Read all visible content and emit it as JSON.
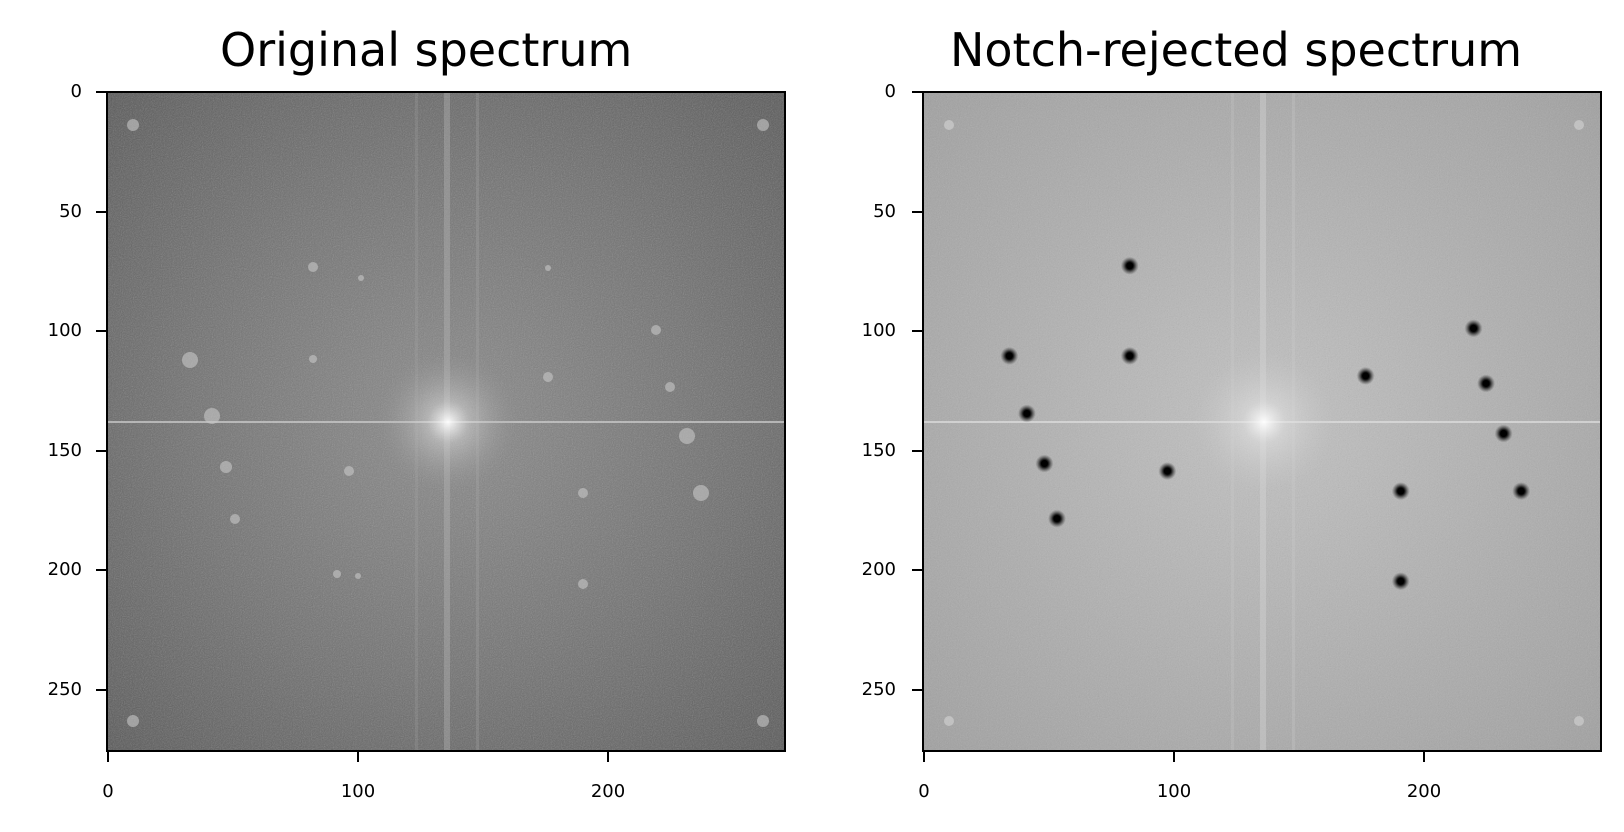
{
  "panels": [
    {
      "title": "Original spectrum",
      "y_ticks": [
        "0",
        "50",
        "100",
        "150",
        "200",
        "250"
      ],
      "x_ticks": [
        "0",
        "100",
        "200"
      ]
    },
    {
      "title": "Notch-rejected spectrum",
      "y_ticks": [
        "0",
        "50",
        "100",
        "150",
        "200",
        "250"
      ],
      "x_ticks": [
        "0",
        "100",
        "200"
      ]
    }
  ],
  "image_info": {
    "x_range": [
      0,
      271
    ],
    "y_range": [
      0,
      264
    ],
    "center": [
      136,
      132
    ],
    "colormap": "gray"
  },
  "notch_points": [
    [
      82,
      69
    ],
    [
      34,
      105
    ],
    [
      82,
      105
    ],
    [
      41,
      128
    ],
    [
      48,
      148
    ],
    [
      53,
      170
    ],
    [
      97,
      151
    ],
    [
      176,
      113
    ],
    [
      219,
      94
    ],
    [
      224,
      116
    ],
    [
      231,
      136
    ],
    [
      238,
      159
    ],
    [
      190,
      159
    ],
    [
      190,
      195
    ]
  ]
}
